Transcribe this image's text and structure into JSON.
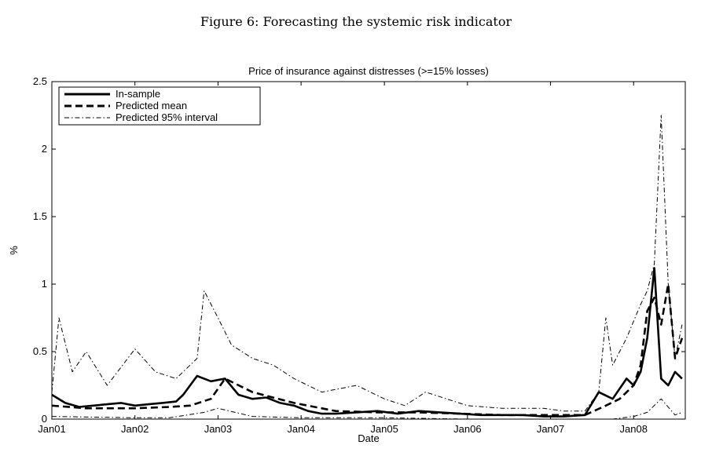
{
  "figure_caption": "Figure 6: Forecasting the systemic risk indicator",
  "chart_data": {
    "type": "line",
    "title": "Price of insurance against distresses (>=15% losses)",
    "xlabel": "Date",
    "ylabel": "%",
    "x_range": [
      "2001-01-01",
      "2008-08-15"
    ],
    "ylim": [
      0,
      2.5
    ],
    "x_ticks": [
      "Jan01",
      "Jan02",
      "Jan03",
      "Jan04",
      "Jan05",
      "Jan06",
      "Jan07",
      "Jan08"
    ],
    "y_ticks": [
      "0",
      "0.5",
      "1",
      "1.5",
      "2",
      "2.5"
    ],
    "grid": false,
    "legend_position": "top-left",
    "series": [
      {
        "name": "In-sample",
        "style": "solid-thick",
        "x": [
          "2001-01",
          "2001-03",
          "2001-05",
          "2001-07",
          "2001-09",
          "2001-11",
          "2002-01",
          "2002-03",
          "2002-05",
          "2002-07",
          "2002-08",
          "2002-10",
          "2002-12",
          "2003-02",
          "2003-04",
          "2003-06",
          "2003-08",
          "2003-10",
          "2003-12",
          "2004-02",
          "2004-04",
          "2004-06",
          "2004-09",
          "2004-12",
          "2005-03",
          "2005-06",
          "2005-09",
          "2005-12",
          "2006-03",
          "2006-06",
          "2006-09",
          "2006-12",
          "2007-03",
          "2007-06",
          "2007-08",
          "2007-10",
          "2007-12",
          "2008-01",
          "2008-02",
          "2008-03",
          "2008-04",
          "2008-05",
          "2008-06",
          "2008-07",
          "2008-08"
        ],
        "values": [
          0.18,
          0.12,
          0.09,
          0.1,
          0.11,
          0.12,
          0.1,
          0.11,
          0.12,
          0.13,
          0.18,
          0.32,
          0.28,
          0.3,
          0.18,
          0.15,
          0.16,
          0.12,
          0.1,
          0.06,
          0.04,
          0.04,
          0.05,
          0.06,
          0.04,
          0.06,
          0.05,
          0.04,
          0.03,
          0.03,
          0.03,
          0.02,
          0.02,
          0.03,
          0.2,
          0.15,
          0.3,
          0.25,
          0.35,
          0.6,
          1.12,
          0.3,
          0.25,
          0.35,
          0.3
        ]
      },
      {
        "name": "Predicted mean",
        "style": "dashed-thick",
        "x": [
          "2001-01",
          "2001-06",
          "2002-01",
          "2002-06",
          "2002-09",
          "2002-12",
          "2003-02",
          "2003-06",
          "2003-12",
          "2004-06",
          "2004-12",
          "2005-06",
          "2005-12",
          "2006-06",
          "2006-12",
          "2007-06",
          "2007-09",
          "2007-11",
          "2008-01",
          "2008-02",
          "2008-03",
          "2008-04",
          "2008-05",
          "2008-06",
          "2008-07",
          "2008-08"
        ],
        "values": [
          0.1,
          0.08,
          0.08,
          0.09,
          0.1,
          0.15,
          0.3,
          0.2,
          0.12,
          0.06,
          0.05,
          0.05,
          0.04,
          0.03,
          0.03,
          0.03,
          0.1,
          0.15,
          0.25,
          0.4,
          0.8,
          0.9,
          0.7,
          1.0,
          0.45,
          0.6
        ]
      },
      {
        "name": "Predicted 95% interval",
        "style": "dashdot-thin",
        "upper": {
          "x": [
            "2001-01",
            "2001-02",
            "2001-04",
            "2001-06",
            "2001-09",
            "2002-01",
            "2002-04",
            "2002-07",
            "2002-10",
            "2002-11",
            "2003-01",
            "2003-03",
            "2003-06",
            "2003-09",
            "2003-12",
            "2004-04",
            "2004-09",
            "2005-01",
            "2005-04",
            "2005-07",
            "2005-10",
            "2006-01",
            "2006-06",
            "2006-12",
            "2007-03",
            "2007-06",
            "2007-08",
            "2007-09",
            "2007-10",
            "2007-12",
            "2008-02",
            "2008-03",
            "2008-04",
            "2008-05",
            "2008-06",
            "2008-07",
            "2008-08"
          ],
          "values": [
            0.2,
            0.75,
            0.35,
            0.5,
            0.25,
            0.52,
            0.35,
            0.3,
            0.45,
            0.95,
            0.75,
            0.55,
            0.45,
            0.4,
            0.3,
            0.2,
            0.25,
            0.15,
            0.1,
            0.2,
            0.15,
            0.1,
            0.08,
            0.08,
            0.06,
            0.06,
            0.2,
            0.75,
            0.4,
            0.6,
            0.85,
            0.95,
            1.15,
            2.25,
            1.0,
            0.45,
            0.7
          ]
        },
        "lower": {
          "x": [
            "2001-01",
            "2002-01",
            "2002-06",
            "2002-11",
            "2003-01",
            "2003-06",
            "2004-01",
            "2005-01",
            "2006-01",
            "2007-01",
            "2007-10",
            "2008-01",
            "2008-03",
            "2008-05",
            "2008-07",
            "2008-08"
          ],
          "values": [
            0.02,
            0.01,
            0.01,
            0.05,
            0.08,
            0.02,
            0.01,
            0.01,
            0.0,
            0.0,
            0.0,
            0.02,
            0.05,
            0.15,
            0.03,
            0.05
          ]
        }
      }
    ]
  }
}
